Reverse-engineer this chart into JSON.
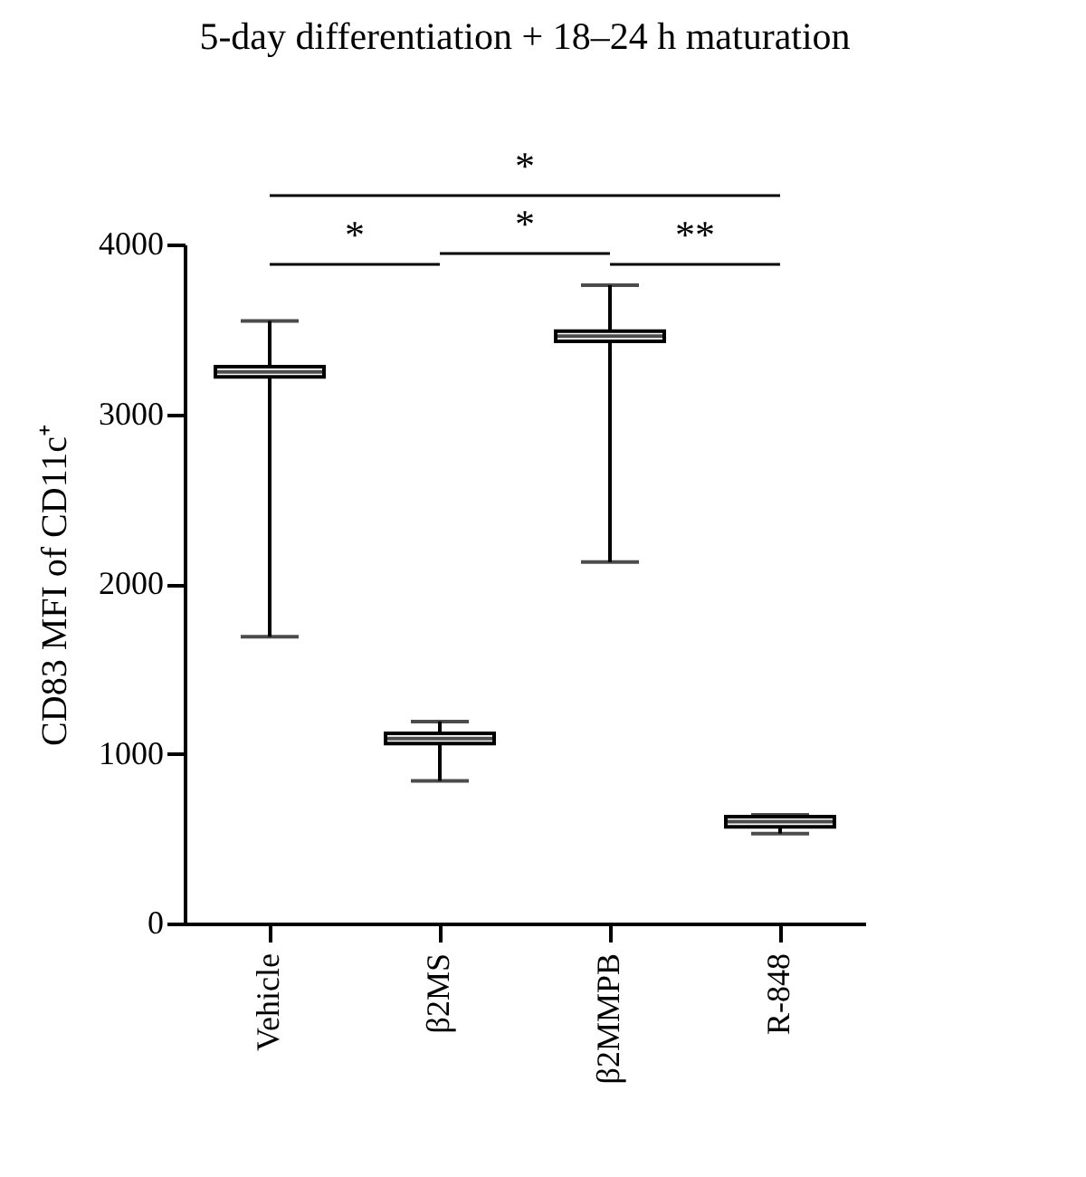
{
  "chart_data": {
    "type": "box",
    "title": "5-day differentiation + 18–24 h maturation",
    "ylabel": "CD83 MFI of CD11c⁺",
    "categories": [
      "Vehicle",
      "β2MS",
      "β2MMPB",
      "R-848"
    ],
    "boxes": [
      {
        "low": 1690,
        "q1": 3220,
        "median": 3250,
        "q3": 3280,
        "high": 3550
      },
      {
        "low": 840,
        "q1": 1060,
        "median": 1090,
        "q3": 1120,
        "high": 1190
      },
      {
        "low": 2130,
        "q1": 3430,
        "median": 3460,
        "q3": 3490,
        "high": 3760
      },
      {
        "low": 530,
        "q1": 570,
        "median": 600,
        "q3": 630,
        "high": 640
      }
    ],
    "ylim": [
      0,
      4000
    ],
    "yticks": [
      0,
      1000,
      2000,
      3000,
      4000
    ],
    "grid": false,
    "annotations": [
      "*",
      "*",
      "*",
      "**"
    ]
  }
}
